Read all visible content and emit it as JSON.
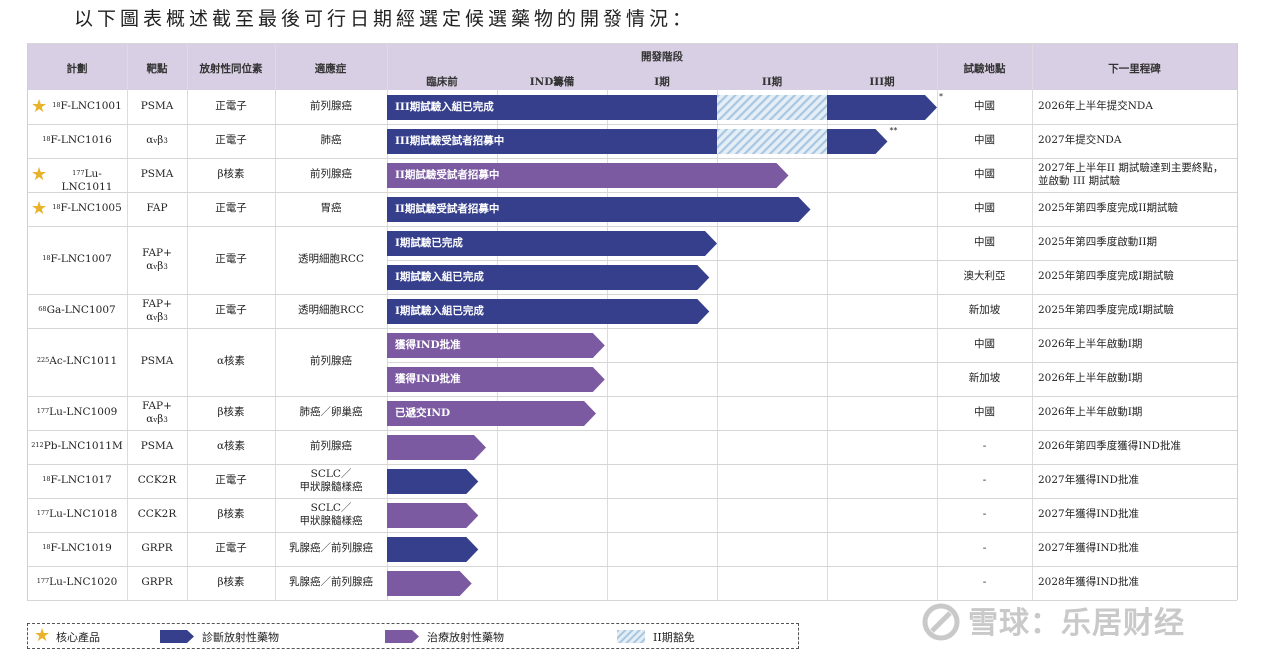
{
  "heading": "以下圖表概述截至最後可行日期經選定候選藥物的開發情況：",
  "colors": {
    "header_bg": "#d9cfe4",
    "diagnostic": "#353f8c",
    "therapeutic": "#7b5aa2",
    "waived": "#bcd3e6",
    "star": "#e8b22a"
  },
  "header": {
    "program": "計劃",
    "target": "靶點",
    "isotope": "放射性同位素",
    "indication": "適應症",
    "stages_group": "開發階段",
    "stages": [
      "臨床前",
      "IND籌備",
      "I期",
      "II期",
      "III期"
    ],
    "site": "試驗地點",
    "milestone": "下一里程碑"
  },
  "rows": [
    {
      "star": true,
      "program_sup": "18",
      "program": "F-LNC1001",
      "target": "PSMA",
      "target_sub": "",
      "isotope": "正電子",
      "indication": "前列腺癌",
      "trials": [
        {
          "type": "diagnostic",
          "label": "III期試驗入組已完成",
          "end_stage": 5.0,
          "waived": true,
          "mark": "*",
          "site": "中國",
          "milestone": "2026年上半年提交NDA"
        }
      ]
    },
    {
      "star": false,
      "program_sup": "18",
      "program": "F-LNC1016",
      "target": "α",
      "target_sub": "v",
      "target_after": "β",
      "target_sub2": "3",
      "isotope": "正電子",
      "indication": "肺癌",
      "trials": [
        {
          "type": "diagnostic",
          "label": "III期試驗受試者招募中",
          "end_stage": 4.55,
          "waived": true,
          "mark": "**",
          "site": "中國",
          "milestone": "2027年提交NDA"
        }
      ]
    },
    {
      "star": true,
      "program_sup": "177",
      "program": "Lu-LNC1011",
      "target": "PSMA",
      "isotope": "β核素",
      "indication": "前列腺癌",
      "trials": [
        {
          "type": "therapeutic",
          "label": "II期試驗受試者招募中",
          "end_stage": 3.65,
          "waived": false,
          "mark": "",
          "site": "中國",
          "milestone": "2027年上半年II 期試驗達到主要終點，並啟動 III 期試驗"
        }
      ]
    },
    {
      "star": true,
      "program_sup": "18",
      "program": "F-LNC1005",
      "target": "FAP",
      "isotope": "正電子",
      "indication": "胃癌",
      "trials": [
        {
          "type": "diagnostic",
          "label": "II期試驗受試者招募中",
          "end_stage": 3.85,
          "waived": false,
          "mark": "",
          "site": "中國",
          "milestone": "2025年第四季度完成II期試驗"
        }
      ]
    },
    {
      "star": false,
      "program_sup": "18",
      "program": "F-LNC1007",
      "target": "FAP+",
      "target2": "α",
      "target2_sub": "v",
      "target2_after": "β",
      "target2_sub2": "3",
      "isotope": "正電子",
      "indication": "透明細胞RCC",
      "trials": [
        {
          "type": "diagnostic",
          "label": "I期試驗已完成",
          "end_stage": 3.0,
          "waived": false,
          "mark": "",
          "site": "中國",
          "milestone": "2025年第四季度啟動II期"
        },
        {
          "type": "diagnostic",
          "label": "I期試驗入組已完成",
          "end_stage": 2.93,
          "waived": false,
          "mark": "",
          "site": "澳大利亞",
          "milestone": "2025年第四季度完成I期試驗"
        }
      ]
    },
    {
      "star": false,
      "program_sup": "68",
      "program": "Ga-LNC1007",
      "target": "FAP+",
      "target2": "α",
      "target2_sub": "v",
      "target2_after": "β",
      "target2_sub2": "3",
      "isotope": "正電子",
      "indication": "透明細胞RCC",
      "trials": [
        {
          "type": "diagnostic",
          "label": "I期試驗入組已完成",
          "end_stage": 2.93,
          "waived": false,
          "mark": "",
          "site": "新加坡",
          "milestone": "2025年第四季度完成I期試驗"
        }
      ]
    },
    {
      "star": false,
      "program_sup": "225",
      "program": "Ac-LNC1011",
      "target": "PSMA",
      "isotope": "α核素",
      "indication": "前列腺癌",
      "trials": [
        {
          "type": "therapeutic",
          "label": "獲得IND批准",
          "end_stage": 1.98,
          "waived": false,
          "mark": "",
          "site": "中國",
          "milestone": "2026年上半年啟動I期"
        },
        {
          "type": "therapeutic",
          "label": "獲得IND批准",
          "end_stage": 1.98,
          "waived": false,
          "mark": "",
          "site": "新加坡",
          "milestone": "2026年上半年啟動I期"
        }
      ]
    },
    {
      "star": false,
      "program_sup": "177",
      "program": "Lu-LNC1009",
      "target": "FAP+",
      "target2": "α",
      "target2_sub": "v",
      "target2_after": "β",
      "target2_sub2": "3",
      "isotope": "β核素",
      "indication": "肺癌／卵巢癌",
      "trials": [
        {
          "type": "therapeutic",
          "label": "已遞交IND",
          "end_stage": 1.9,
          "waived": false,
          "mark": "",
          "site": "中國",
          "milestone": "2026年上半年啟動I期"
        }
      ]
    },
    {
      "star": false,
      "program_sup": "212",
      "program": "Pb-LNC1011M",
      "target": "PSMA",
      "isotope": "α核素",
      "indication": "前列腺癌",
      "trials": [
        {
          "type": "therapeutic",
          "label": "",
          "end_stage": 0.9,
          "waived": false,
          "mark": "",
          "site": "-",
          "milestone": "2026年第四季度獲得IND批准"
        }
      ]
    },
    {
      "star": false,
      "program_sup": "18",
      "program": "F-LNC1017",
      "target": "CCK2R",
      "isotope": "正電子",
      "indication": "SCLC／",
      "indication2": "甲狀腺髓樣癌",
      "trials": [
        {
          "type": "diagnostic",
          "label": "",
          "end_stage": 0.83,
          "waived": false,
          "mark": "",
          "site": "-",
          "milestone": "2027年獲得IND批准"
        }
      ]
    },
    {
      "star": false,
      "program_sup": "177",
      "program": "Lu-LNC1018",
      "target": "CCK2R",
      "isotope": "β核素",
      "indication": "SCLC／",
      "indication2": "甲狀腺髓樣癌",
      "trials": [
        {
          "type": "therapeutic",
          "label": "",
          "end_stage": 0.83,
          "waived": false,
          "mark": "",
          "site": "-",
          "milestone": "2027年獲得IND批准"
        }
      ]
    },
    {
      "star": false,
      "program_sup": "18",
      "program": "F-LNC1019",
      "target": "GRPR",
      "isotope": "正電子",
      "indication": "乳腺癌／前列腺癌",
      "trials": [
        {
          "type": "diagnostic",
          "label": "",
          "end_stage": 0.83,
          "waived": false,
          "mark": "",
          "site": "-",
          "milestone": "2027年獲得IND批准"
        }
      ]
    },
    {
      "star": false,
      "program_sup": "177",
      "program": "Lu-LNC1020",
      "target": "GRPR",
      "isotope": "β核素",
      "indication": "乳腺癌／前列腺癌",
      "trials": [
        {
          "type": "therapeutic",
          "label": "",
          "end_stage": 0.77,
          "waived": false,
          "mark": "",
          "site": "-",
          "milestone": "2028年獲得IND批准"
        }
      ]
    }
  ],
  "legend": {
    "core": "核心產品",
    "diagnostic": "診斷放射性藥物",
    "therapeutic": "治療放射性藥物",
    "waived": "II期豁免"
  },
  "watermark": "雪球：乐居财经"
}
